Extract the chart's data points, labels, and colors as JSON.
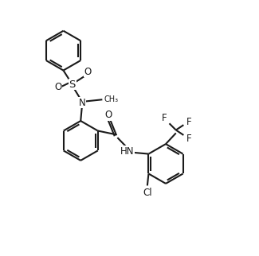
{
  "bg_color": "#ffffff",
  "line_color": "#1a1a1a",
  "line_width": 1.5,
  "font_size": 8.5,
  "figsize": [
    3.25,
    3.22
  ],
  "dpi": 100,
  "xlim": [
    0,
    10
  ],
  "ylim": [
    0,
    10
  ]
}
